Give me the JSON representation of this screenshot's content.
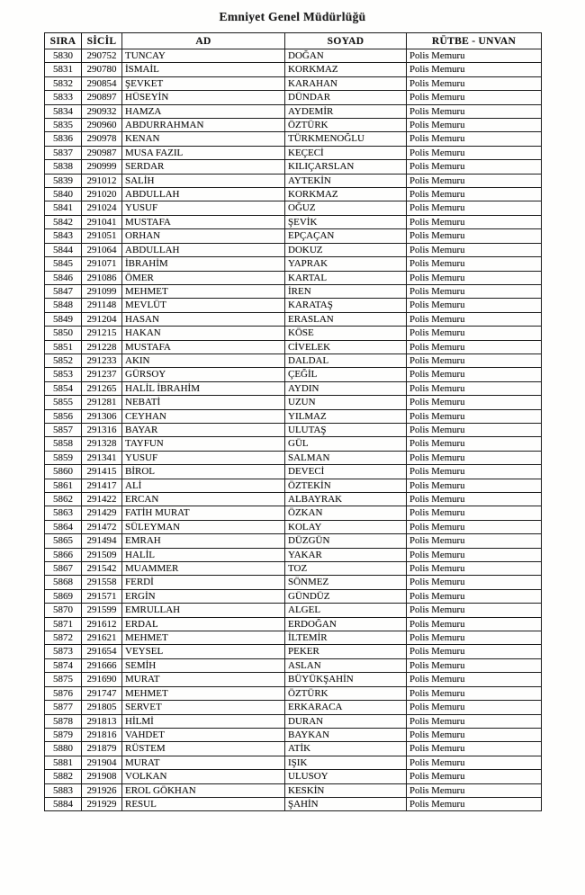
{
  "page_title": "Emniyet Genel Müdürlüğü",
  "table": {
    "headers": [
      "SIRA",
      "SİCİL",
      "AD",
      "SOYAD",
      "RÜTBE - UNVAN"
    ],
    "rows": [
      [
        "5830",
        "290752",
        "TUNCAY",
        "DOĞAN",
        "Polis Memuru"
      ],
      [
        "5831",
        "290780",
        "İSMAİL",
        "KORKMAZ",
        "Polis Memuru"
      ],
      [
        "5832",
        "290854",
        "ŞEVKET",
        "KARAHAN",
        "Polis Memuru"
      ],
      [
        "5833",
        "290897",
        "HÜSEYİN",
        "DÜNDAR",
        "Polis Memuru"
      ],
      [
        "5834",
        "290932",
        "HAMZA",
        "AYDEMİR",
        "Polis Memuru"
      ],
      [
        "5835",
        "290960",
        "ABDURRAHMAN",
        "ÖZTÜRK",
        "Polis Memuru"
      ],
      [
        "5836",
        "290978",
        "KENAN",
        "TÜRKMENOĞLU",
        "Polis Memuru"
      ],
      [
        "5837",
        "290987",
        "MUSA FAZIL",
        "KEÇECİ",
        "Polis Memuru"
      ],
      [
        "5838",
        "290999",
        "SERDAR",
        "KILIÇARSLAN",
        "Polis Memuru"
      ],
      [
        "5839",
        "291012",
        "SALİH",
        "AYTEKİN",
        "Polis Memuru"
      ],
      [
        "5840",
        "291020",
        "ABDULLAH",
        "KORKMAZ",
        "Polis Memuru"
      ],
      [
        "5841",
        "291024",
        "YUSUF",
        "OĞUZ",
        "Polis Memuru"
      ],
      [
        "5842",
        "291041",
        "MUSTAFA",
        "ŞEVİK",
        "Polis Memuru"
      ],
      [
        "5843",
        "291051",
        "ORHAN",
        "EPÇAÇAN",
        "Polis Memuru"
      ],
      [
        "5844",
        "291064",
        "ABDULLAH",
        "DOKUZ",
        "Polis Memuru"
      ],
      [
        "5845",
        "291071",
        "İBRAHİM",
        "YAPRAK",
        "Polis Memuru"
      ],
      [
        "5846",
        "291086",
        "ÖMER",
        "KARTAL",
        "Polis Memuru"
      ],
      [
        "5847",
        "291099",
        "MEHMET",
        "İREN",
        "Polis Memuru"
      ],
      [
        "5848",
        "291148",
        "MEVLÜT",
        "KARATAŞ",
        "Polis Memuru"
      ],
      [
        "5849",
        "291204",
        "HASAN",
        "ERASLAN",
        "Polis Memuru"
      ],
      [
        "5850",
        "291215",
        "HAKAN",
        "KÖSE",
        "Polis Memuru"
      ],
      [
        "5851",
        "291228",
        "MUSTAFA",
        "CİVELEK",
        "Polis Memuru"
      ],
      [
        "5852",
        "291233",
        "AKIN",
        "DALDAL",
        "Polis Memuru"
      ],
      [
        "5853",
        "291237",
        "GÜRSOY",
        "ÇEĞİL",
        "Polis Memuru"
      ],
      [
        "5854",
        "291265",
        "HALİL İBRAHİM",
        "AYDIN",
        "Polis Memuru"
      ],
      [
        "5855",
        "291281",
        "NEBATİ",
        "UZUN",
        "Polis Memuru"
      ],
      [
        "5856",
        "291306",
        "CEYHAN",
        "YILMAZ",
        "Polis Memuru"
      ],
      [
        "5857",
        "291316",
        "BAYAR",
        "ULUTAŞ",
        "Polis Memuru"
      ],
      [
        "5858",
        "291328",
        "TAYFUN",
        "GÜL",
        "Polis Memuru"
      ],
      [
        "5859",
        "291341",
        "YUSUF",
        "SALMAN",
        "Polis Memuru"
      ],
      [
        "5860",
        "291415",
        "BİROL",
        "DEVECİ",
        "Polis Memuru"
      ],
      [
        "5861",
        "291417",
        "ALİ",
        "ÖZTEKİN",
        "Polis Memuru"
      ],
      [
        "5862",
        "291422",
        "ERCAN",
        "ALBAYRAK",
        "Polis Memuru"
      ],
      [
        "5863",
        "291429",
        "FATİH MURAT",
        "ÖZKAN",
        "Polis Memuru"
      ],
      [
        "5864",
        "291472",
        "SÜLEYMAN",
        "KOLAY",
        "Polis Memuru"
      ],
      [
        "5865",
        "291494",
        "EMRAH",
        "DÜZGÜN",
        "Polis Memuru"
      ],
      [
        "5866",
        "291509",
        "HALİL",
        "YAKAR",
        "Polis Memuru"
      ],
      [
        "5867",
        "291542",
        "MUAMMER",
        "TOZ",
        "Polis Memuru"
      ],
      [
        "5868",
        "291558",
        "FERDİ",
        "SÖNMEZ",
        "Polis Memuru"
      ],
      [
        "5869",
        "291571",
        "ERGİN",
        "GÜNDÜZ",
        "Polis Memuru"
      ],
      [
        "5870",
        "291599",
        "EMRULLAH",
        "ALGEL",
        "Polis Memuru"
      ],
      [
        "5871",
        "291612",
        "ERDAL",
        "ERDOĞAN",
        "Polis Memuru"
      ],
      [
        "5872",
        "291621",
        "MEHMET",
        "İLTEMİR",
        "Polis Memuru"
      ],
      [
        "5873",
        "291654",
        "VEYSEL",
        "PEKER",
        "Polis Memuru"
      ],
      [
        "5874",
        "291666",
        "SEMİH",
        "ASLAN",
        "Polis Memuru"
      ],
      [
        "5875",
        "291690",
        "MURAT",
        "BÜYÜKŞAHİN",
        "Polis Memuru"
      ],
      [
        "5876",
        "291747",
        "MEHMET",
        "ÖZTÜRK",
        "Polis Memuru"
      ],
      [
        "5877",
        "291805",
        "SERVET",
        "ERKARACA",
        "Polis Memuru"
      ],
      [
        "5878",
        "291813",
        "HİLMİ",
        "DURAN",
        "Polis Memuru"
      ],
      [
        "5879",
        "291816",
        "VAHDET",
        "BAYKAN",
        "Polis Memuru"
      ],
      [
        "5880",
        "291879",
        "RÜSTEM",
        "ATİK",
        "Polis Memuru"
      ],
      [
        "5881",
        "291904",
        "MURAT",
        "IŞIK",
        "Polis Memuru"
      ],
      [
        "5882",
        "291908",
        "VOLKAN",
        "ULUSOY",
        "Polis Memuru"
      ],
      [
        "5883",
        "291926",
        "EROL GÖKHAN",
        "KESKİN",
        "Polis Memuru"
      ],
      [
        "5884",
        "291929",
        "RESUL",
        "ŞAHİN",
        "Polis Memuru"
      ]
    ]
  }
}
